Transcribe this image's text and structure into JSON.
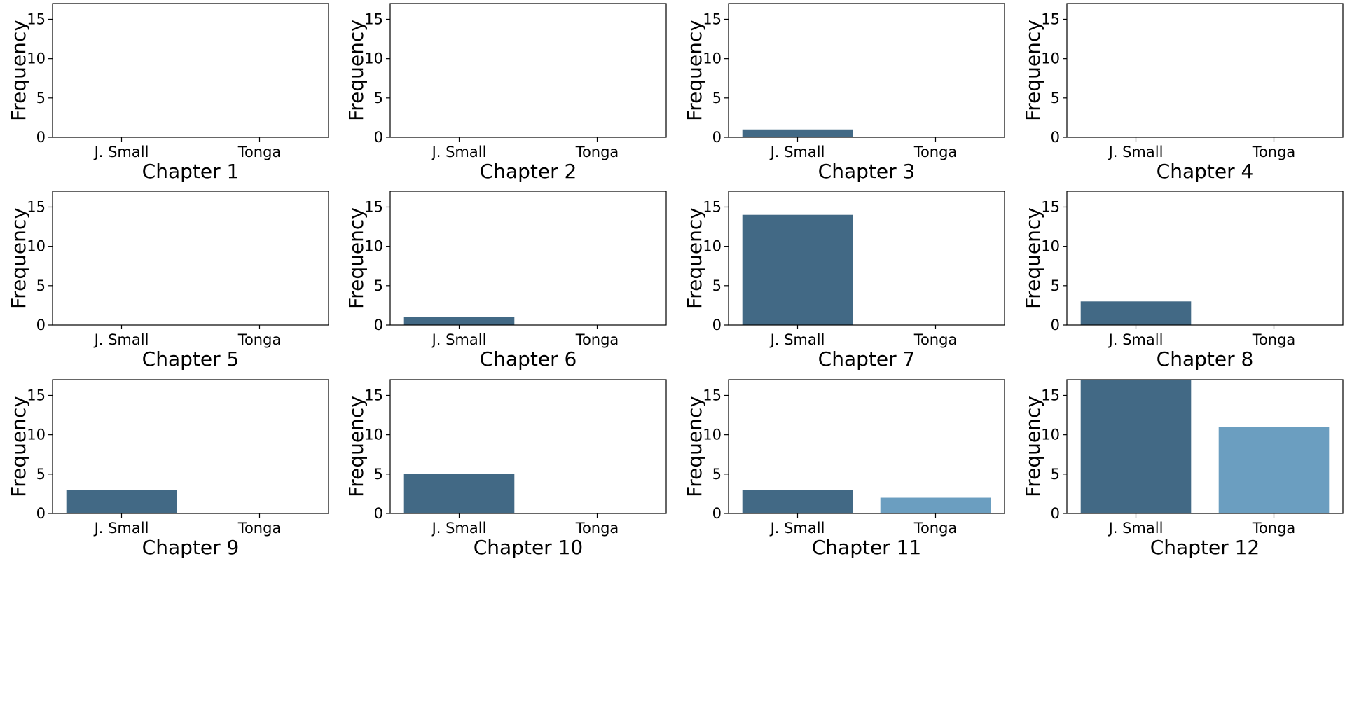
{
  "colors": {
    "series_a": "#426985",
    "series_b": "#6b9ec0"
  },
  "chart_data": [
    {
      "type": "bar",
      "categories": [
        "J. Small",
        "Tonga"
      ],
      "values": [
        0,
        0
      ],
      "xlabel": "Chapter 1",
      "ylabel": "Frequency",
      "ylim": [
        0,
        17
      ],
      "yticks": [
        0,
        5,
        10,
        15
      ]
    },
    {
      "type": "bar",
      "categories": [
        "J. Small",
        "Tonga"
      ],
      "values": [
        0,
        0
      ],
      "xlabel": "Chapter 2",
      "ylabel": "Frequency",
      "ylim": [
        0,
        17
      ],
      "yticks": [
        0,
        5,
        10,
        15
      ]
    },
    {
      "type": "bar",
      "categories": [
        "J. Small",
        "Tonga"
      ],
      "values": [
        1,
        0
      ],
      "xlabel": "Chapter 3",
      "ylabel": "Frequency",
      "ylim": [
        0,
        17
      ],
      "yticks": [
        0,
        5,
        10,
        15
      ]
    },
    {
      "type": "bar",
      "categories": [
        "J. Small",
        "Tonga"
      ],
      "values": [
        0,
        0
      ],
      "xlabel": "Chapter 4",
      "ylabel": "Frequency",
      "ylim": [
        0,
        17
      ],
      "yticks": [
        0,
        5,
        10,
        15
      ]
    },
    {
      "type": "bar",
      "categories": [
        "J. Small",
        "Tonga"
      ],
      "values": [
        0,
        0
      ],
      "xlabel": "Chapter 5",
      "ylabel": "Frequency",
      "ylim": [
        0,
        17
      ],
      "yticks": [
        0,
        5,
        10,
        15
      ]
    },
    {
      "type": "bar",
      "categories": [
        "J. Small",
        "Tonga"
      ],
      "values": [
        1,
        0
      ],
      "xlabel": "Chapter 6",
      "ylabel": "Frequency",
      "ylim": [
        0,
        17
      ],
      "yticks": [
        0,
        5,
        10,
        15
      ]
    },
    {
      "type": "bar",
      "categories": [
        "J. Small",
        "Tonga"
      ],
      "values": [
        14,
        0
      ],
      "xlabel": "Chapter 7",
      "ylabel": "Frequency",
      "ylim": [
        0,
        17
      ],
      "yticks": [
        0,
        5,
        10,
        15
      ]
    },
    {
      "type": "bar",
      "categories": [
        "J. Small",
        "Tonga"
      ],
      "values": [
        3,
        0
      ],
      "xlabel": "Chapter 8",
      "ylabel": "Frequency",
      "ylim": [
        0,
        17
      ],
      "yticks": [
        0,
        5,
        10,
        15
      ]
    },
    {
      "type": "bar",
      "categories": [
        "J. Small",
        "Tonga"
      ],
      "values": [
        3,
        0
      ],
      "xlabel": "Chapter 9",
      "ylabel": "Frequency",
      "ylim": [
        0,
        17
      ],
      "yticks": [
        0,
        5,
        10,
        15
      ]
    },
    {
      "type": "bar",
      "categories": [
        "J. Small",
        "Tonga"
      ],
      "values": [
        5,
        0
      ],
      "xlabel": "Chapter 10",
      "ylabel": "Frequency",
      "ylim": [
        0,
        17
      ],
      "yticks": [
        0,
        5,
        10,
        15
      ]
    },
    {
      "type": "bar",
      "categories": [
        "J. Small",
        "Tonga"
      ],
      "values": [
        3,
        2
      ],
      "xlabel": "Chapter 11",
      "ylabel": "Frequency",
      "ylim": [
        0,
        17
      ],
      "yticks": [
        0,
        5,
        10,
        15
      ]
    },
    {
      "type": "bar",
      "categories": [
        "J. Small",
        "Tonga"
      ],
      "values": [
        17,
        11
      ],
      "xlabel": "Chapter 12",
      "ylabel": "Frequency",
      "ylim": [
        0,
        17
      ],
      "yticks": [
        0,
        5,
        10,
        15
      ]
    }
  ]
}
